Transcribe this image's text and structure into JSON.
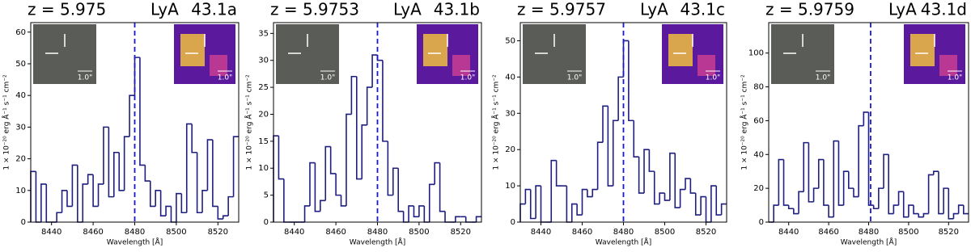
{
  "chart_data": [
    {
      "type": "histogram",
      "redshift": "z = 5.975",
      "line": "LyA",
      "id": "43.1a",
      "xlabel": "Wavelength [Å]",
      "ylabel": "1 × 10⁻²⁰ erg Å⁻¹ s⁻¹ cm⁻²",
      "inset_label": "1.0\"",
      "xlim": [
        8430,
        8530
      ],
      "xticks": [
        8440,
        8460,
        8480,
        8500,
        8520
      ],
      "ylim": [
        0,
        63
      ],
      "yticks": [
        0,
        10,
        20,
        30,
        40,
        50,
        60
      ],
      "line_x": 8480,
      "color": "#1f1f80",
      "line_color": "#1a1acc",
      "values": [
        16,
        0,
        12,
        0,
        0,
        3,
        10,
        5,
        18,
        0,
        12,
        15,
        5,
        12,
        30,
        8,
        22,
        10,
        27,
        40,
        52,
        18,
        13,
        5,
        10,
        2,
        5,
        0,
        9,
        3,
        31,
        22,
        3,
        10,
        26,
        5,
        1,
        2,
        8,
        27
      ]
    },
    {
      "type": "histogram",
      "redshift": "z = 5.9753",
      "line": "LyA",
      "id": "43.1b",
      "xlabel": "Wavelength [Å]",
      "ylabel": "1 × 10⁻²⁰ erg Å⁻¹ s⁻¹ cm⁻²",
      "inset_label": "1.0\"",
      "xlim": [
        8430,
        8530
      ],
      "xticks": [
        8440,
        8460,
        8480,
        8500,
        8520
      ],
      "ylim": [
        0,
        37
      ],
      "yticks": [
        0,
        5,
        10,
        15,
        20,
        25,
        30,
        35
      ],
      "line_x": 8480,
      "color": "#1f1f80",
      "line_color": "#1a1acc",
      "values": [
        16,
        8,
        0,
        0,
        0,
        0,
        3,
        11,
        2,
        4,
        14,
        9,
        5,
        3,
        20,
        27,
        8,
        18,
        25,
        31,
        30,
        15,
        5,
        10,
        2,
        0,
        3,
        1,
        3,
        0,
        7,
        11,
        2,
        0,
        0,
        1,
        1,
        0,
        0,
        1
      ]
    },
    {
      "type": "histogram",
      "redshift": "z = 5.9757",
      "line": "LyA",
      "id": "43.1c",
      "xlabel": "Wavelength [Å]",
      "ylabel": "1 × 10⁻²⁰ erg Å⁻¹ s⁻¹ cm⁻²",
      "inset_label": "1.0\"",
      "xlim": [
        8430,
        8530
      ],
      "xticks": [
        8440,
        8460,
        8480,
        8500,
        8520
      ],
      "ylim": [
        0,
        55
      ],
      "yticks": [
        0,
        10,
        20,
        30,
        40,
        50
      ],
      "line_x": 8480,
      "color": "#1f1f80",
      "line_color": "#1a1acc",
      "values": [
        5,
        9,
        1,
        10,
        0,
        0,
        17,
        10,
        10,
        0,
        5,
        2,
        9,
        7,
        9,
        22,
        32,
        10,
        28,
        40,
        50,
        28,
        18,
        8,
        20,
        14,
        5,
        8,
        6,
        19,
        4,
        9,
        12,
        8,
        2,
        7,
        0,
        10,
        2,
        5
      ]
    },
    {
      "type": "histogram",
      "redshift": "z = 5.9759",
      "line": "LyA",
      "id": "43.1d",
      "xlabel": "Wavelength [Å]",
      "ylabel": "1 × 10⁻²⁰ erg Å⁻¹ s⁻¹ cm⁻²",
      "inset_label": "1.0\"",
      "xlim": [
        8430,
        8530
      ],
      "xticks": [
        8440,
        8460,
        8480,
        8500,
        8520
      ],
      "ylim": [
        0,
        118
      ],
      "yticks": [
        0,
        20,
        40,
        60,
        80,
        100
      ],
      "line_x": 8481,
      "color": "#1f1f80",
      "line_color": "#1a1acc",
      "values": [
        0,
        10,
        37,
        10,
        8,
        5,
        18,
        47,
        12,
        20,
        37,
        10,
        3,
        48,
        10,
        30,
        20,
        15,
        57,
        65,
        10,
        8,
        20,
        40,
        5,
        10,
        18,
        3,
        10,
        5,
        3,
        5,
        28,
        30,
        5,
        20,
        2,
        5,
        10,
        5
      ]
    }
  ]
}
